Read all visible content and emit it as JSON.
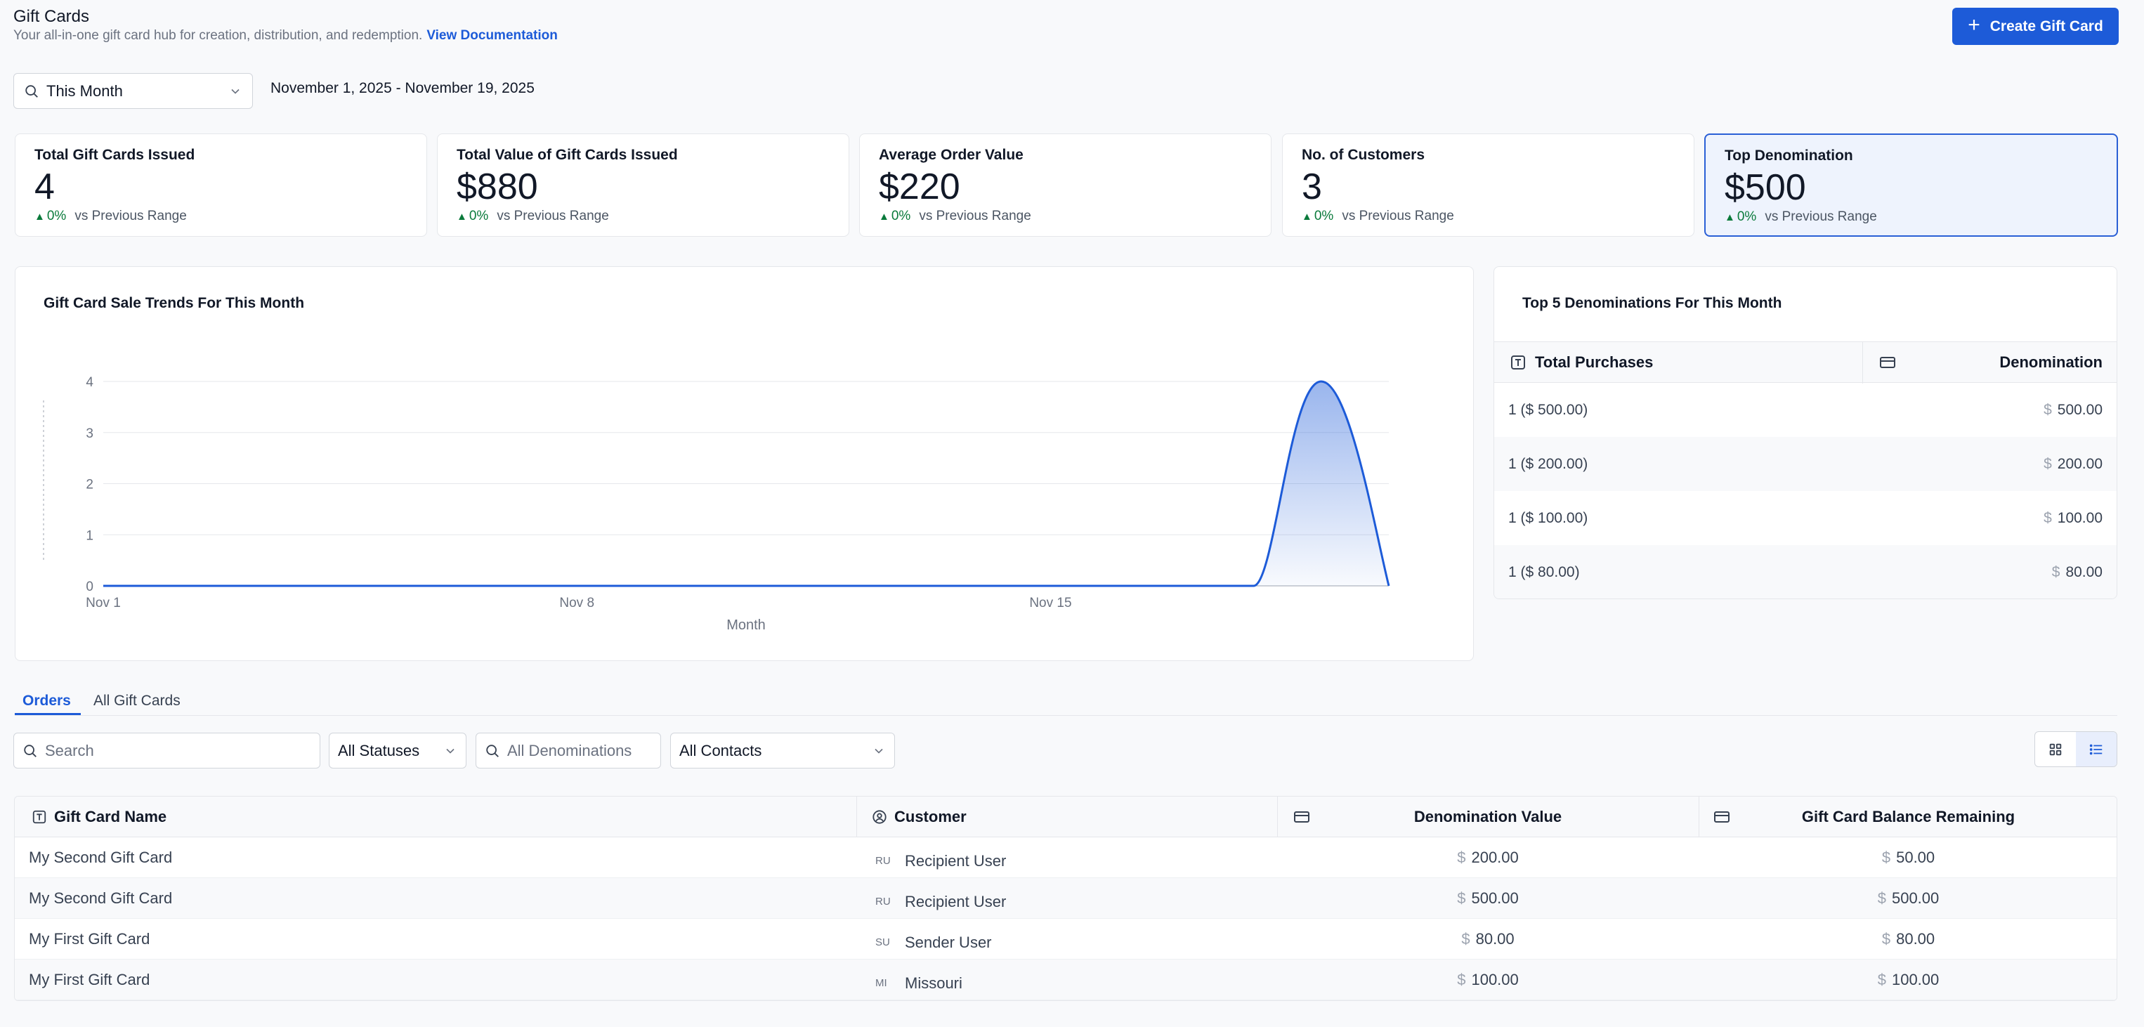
{
  "header": {
    "title": "Gift Cards",
    "subtitle": "Your all-in-one gift card hub for creation, distribution, and redemption.",
    "doc_link": "View Documentation",
    "create_button": "Create Gift Card"
  },
  "filters": {
    "range": "This Month",
    "date_range": "November 1, 2025 - November 19, 2025"
  },
  "kpis": [
    {
      "label": "Total Gift Cards Issued",
      "value": "4",
      "delta": "0%",
      "compare": "vs Previous Range"
    },
    {
      "label": "Total Value of Gift Cards Issued",
      "value": "$880",
      "delta": "0%",
      "compare": "vs Previous Range"
    },
    {
      "label": "Average Order Value",
      "value": "$220",
      "delta": "0%",
      "compare": "vs Previous Range"
    },
    {
      "label": "No. of Customers",
      "value": "3",
      "delta": "0%",
      "compare": "vs Previous Range"
    },
    {
      "label": "Top Denomination",
      "value": "$500",
      "delta": "0%",
      "compare": "vs Previous Range"
    }
  ],
  "chart_data": {
    "type": "area",
    "title": "Gift Card Sale Trends For This Month",
    "xlabel": "Month",
    "ylabel": "",
    "x_ticks": [
      "Nov 1",
      "Nov 8",
      "Nov 15"
    ],
    "y_ticks": [
      0,
      1,
      2,
      3,
      4
    ],
    "ylim": [
      0,
      4
    ],
    "xlim": [
      1,
      20
    ],
    "series": [
      {
        "values": [
          [
            1,
            0
          ],
          [
            18,
            0
          ],
          [
            19,
            4
          ],
          [
            20,
            0
          ]
        ]
      }
    ],
    "color": "#1d5bd8",
    "grid": true
  },
  "denominations": {
    "title": "Top 5 Denominations For This Month",
    "col_purchases": "Total Purchases",
    "col_denomination": "Denomination",
    "currency": "$",
    "rows": [
      {
        "purchases": "1 ($ 500.00)",
        "value": "500.00"
      },
      {
        "purchases": "1 ($ 200.00)",
        "value": "200.00"
      },
      {
        "purchases": "1 ($ 100.00)",
        "value": "100.00"
      },
      {
        "purchases": "1 ($ 80.00)",
        "value": "80.00"
      }
    ]
  },
  "tabs": [
    "Orders",
    "All Gift Cards"
  ],
  "order_filters": {
    "search_placeholder": "Search",
    "status": "All Statuses",
    "denom_placeholder": "All Denominations",
    "contacts": "All Contacts"
  },
  "orders": {
    "columns": [
      "Gift Card Name",
      "Customer",
      "Denomination Value",
      "Gift Card Balance Remaining"
    ],
    "currency": "$",
    "rows": [
      {
        "name": "My Second Gift Card",
        "initials": "RU",
        "customer": "Recipient User",
        "denomination": "200.00",
        "balance": "50.00"
      },
      {
        "name": "My Second Gift Card",
        "initials": "RU",
        "customer": "Recipient User",
        "denomination": "500.00",
        "balance": "500.00"
      },
      {
        "name": "My First Gift Card",
        "initials": "SU",
        "customer": "Sender User",
        "denomination": "80.00",
        "balance": "80.00"
      },
      {
        "name": "My First Gift Card",
        "initials": "MI",
        "customer": "Missouri",
        "denomination": "100.00",
        "balance": "100.00"
      }
    ]
  }
}
